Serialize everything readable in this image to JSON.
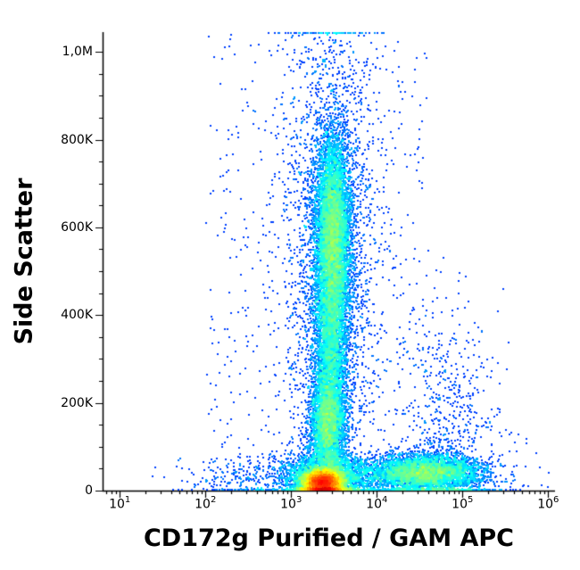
{
  "figure": {
    "background": "#ffffff",
    "axis_color": "#000000"
  },
  "chart_data": {
    "type": "scatter",
    "subtype": "flow-cytometry-pseudocolor-density-plot",
    "title": "",
    "xlabel": "CD172g Purified / GAM APC",
    "ylabel": "Side Scatter",
    "x_scale": "log10",
    "x_range_log10": [
      0.8,
      6.08
    ],
    "x_ticks": [
      {
        "base": "10",
        "exp": "1",
        "log10": 1
      },
      {
        "base": "10",
        "exp": "2",
        "log10": 2
      },
      {
        "base": "10",
        "exp": "3",
        "log10": 3
      },
      {
        "base": "10",
        "exp": "4",
        "log10": 4
      },
      {
        "base": "10",
        "exp": "5",
        "log10": 5
      },
      {
        "base": "10",
        "exp": "6",
        "log10": 6
      }
    ],
    "y_range": [
      0,
      1045000
    ],
    "y_ticks": [
      {
        "label": "0",
        "value": 0
      },
      {
        "label": "200K",
        "value": 200000
      },
      {
        "label": "400K",
        "value": 400000
      },
      {
        "label": "600K",
        "value": 600000
      },
      {
        "label": "800K",
        "value": 800000
      },
      {
        "label": "1,0M",
        "value": 1000000
      }
    ],
    "grid": false,
    "legend": null,
    "colormap": "jet",
    "populations": [
      {
        "name": "ssc-high-band-core",
        "n": 7000,
        "cx_log10": 3.48,
        "cy": 590000,
        "sx_log10": 0.1,
        "sy": 115000
      },
      {
        "name": "ssc-mid-band",
        "n": 4000,
        "cx_log10": 3.45,
        "cy": 340000,
        "sx_log10": 0.1,
        "sy": 130000
      },
      {
        "name": "ssc-low-band",
        "n": 3500,
        "cx_log10": 3.42,
        "cy": 150000,
        "sx_log10": 0.1,
        "sy": 60000
      },
      {
        "name": "band-halo",
        "n": 2600,
        "cx_log10": 3.47,
        "cy": 520000,
        "sx_log10": 0.28,
        "sy": 300000
      },
      {
        "name": "dense-negative-bottom",
        "n": 12000,
        "cx_log10": 3.36,
        "cy": 20000,
        "sx_log10": 0.11,
        "sy": 14000
      },
      {
        "name": "bottom-spread",
        "n": 2500,
        "cx_log10": 3.42,
        "cy": 35000,
        "sx_log10": 0.3,
        "sy": 25000
      },
      {
        "name": "cd172g-positive",
        "n": 4800,
        "cx_log10": 4.55,
        "cy": 42000,
        "sx_log10": 0.32,
        "sy": 21000
      },
      {
        "name": "positive-upper-sparse",
        "n": 700,
        "cx_log10": 4.85,
        "cy": 130000,
        "sx_log10": 0.28,
        "sy": 140000
      },
      {
        "name": "left-bottom-sparse",
        "n": 350,
        "cx_log10": 2.6,
        "cy": 30000,
        "sx_log10": 0.45,
        "sy": 30000
      },
      {
        "name": "far-right-sparse",
        "n": 60,
        "cx_log10": 5.4,
        "cy": 50000,
        "sx_log10": 0.3,
        "sy": 40000
      },
      {
        "name": "background-uniform",
        "n": 600,
        "type": "uniform",
        "cx_log10": 3.3,
        "cy": 520000,
        "sx_log10": 1.3,
        "sy": 520000
      }
    ]
  }
}
